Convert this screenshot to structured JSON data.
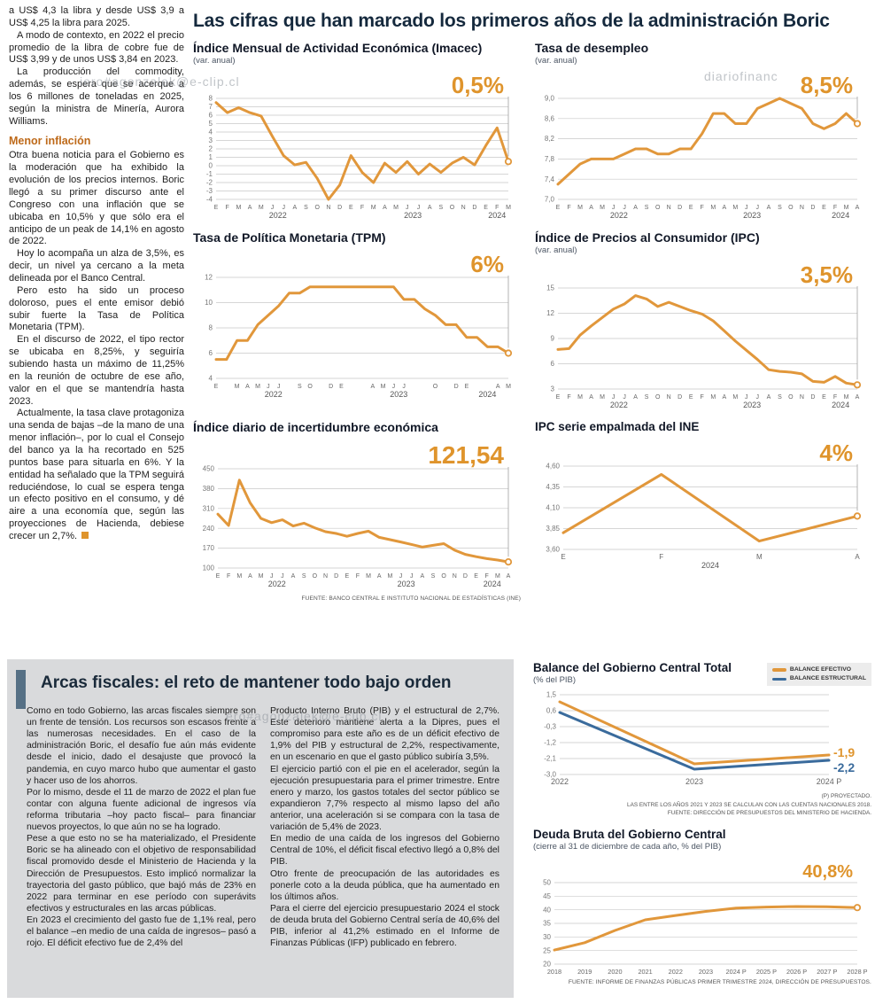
{
  "page": {
    "headline": "Las cifras que han marcado los primeros años de la administración Boric"
  },
  "watermarks": [
    "iero#agonzalek@e-clip.cl",
    "diariofinanc",
    "ero#agonzalek@e-clip.cl"
  ],
  "left_article": {
    "paragraphs_top": [
      "a US$ 4,3 la libra y desde US$ 3,9 a US$ 4,25 la libra para 2025.",
      "A modo de contexto, en 2022 el precio promedio de la libra de cobre fue de US$ 3,99 y de unos US$ 3,84 en 2023.",
      "La producción del commodity, además, se espera que se acerque a los 6 millones de toneladas en 2025, según la ministra de Minería, Aurora Williams."
    ],
    "subhead": "Menor inflación",
    "paragraphs_bottom": [
      "Otra buena noticia para el Gobierno es la moderación que ha exhibido la evolución de los precios internos. Boric llegó a su primer discurso ante el Congreso con una inflación que se ubicaba en 10,5% y que sólo era el anticipo de un peak de 14,1% en agosto de 2022.",
      "Hoy lo acompaña un alza de 3,5%, es decir, un nivel ya cercano a la meta delineada por el Banco Central.",
      "Pero esto ha sido un proceso doloroso, pues el ente emisor debió subir fuerte la Tasa de Política Monetaria (TPM).",
      "En el discurso de 2022, el tipo rector se ubicaba en 8,25%, y seguiría subiendo hasta un máximo de 11,25% en la reunión de octubre de ese año, valor en el que se mantendría hasta 2023.",
      "Actualmente, la tasa clave protagoniza una senda de bajas –de la mano de una menor inflación–, por lo cual el Consejo del banco ya la ha recortado en 525 puntos base para situarla en 6%. Y la entidad ha señalado que la TPM seguirá reduciéndose, lo cual se espera tenga un efecto positivo en el consumo, y dé aire a una economía que, según las proyecciones de Hacienda, debiese crecer un 2,7%."
    ]
  },
  "fiscal": {
    "headline": "Arcas fiscales: el reto de mantener todo bajo orden",
    "col1": [
      "Como en todo Gobierno, las arcas fiscales siempre son un frente de tensión. Los recursos son escasos frente a las numerosas necesidades. En el caso de la administración Boric, el desafío fue aún más evidente desde el inicio, dado el desajuste que provocó la pandemia, en cuyo marco hubo que aumentar el gasto y hacer uso de los ahorros.",
      "Por lo mismo, desde el 11 de marzo de 2022 el plan fue contar con alguna fuente adicional de ingresos vía reforma tributaria –hoy pacto fiscal– para financiar nuevos proyectos, lo que aún no se ha logrado.",
      "Pese a que esto no se ha materializado, el Presidente Boric se ha alineado con el objetivo de responsabilidad fiscal promovido desde el Ministerio de Hacienda y la Dirección de Presupuestos. Esto implicó normalizar la trayectoria del gasto público, que bajó más de 23% en 2022 para terminar en ese período con superávits efectivos y estructurales en las arcas públicas.",
      "En 2023 el crecimiento del gasto fue de 1,1% real, pero el balance –en medio de una caída de ingresos– pasó a rojo. El déficit efectivo fue de 2,4% del"
    ],
    "col2": [
      "Producto Interno Bruto (PIB) y el estructural de 2,7%. Este deterioro mantiene alerta a la Dipres, pues el compromiso para este año es de un déficit efectivo de 1,9% del PIB y estructural de 2,2%, respectivamente, en un escenario en que el gasto público subiría 3,5%.",
      "El ejercicio partió con el pie en el acelerador, según la ejecución presupuestaria para el primer trimestre. Entre enero y marzo, los gastos totales del sector público se expandieron 7,7% respecto al mismo lapso del año anterior, una aceleración si se compara con la tasa de variación de 5,4% de 2023.",
      "En medio de una caída de los ingresos del Gobierno Central de 10%, el déficit fiscal efectivo llegó a 0,8% del PIB.",
      "Otro frente de preocupación de las autoridades es ponerle coto a la deuda pública, que ha aumentado en los últimos años.",
      "Para el cierre del ejercicio presupuestario 2024 el stock de deuda bruta del Gobierno Central sería de 40,6% del PIB, inferior al 41,2% estimado en el Informe de Finanzas Públicas (IFP) publicado en febrero."
    ]
  },
  "colors": {
    "accent_orange": "#E1973B",
    "value_orange": "#DF942C",
    "accent_blue": "#3A6B9C",
    "headline_navy": "#15293D",
    "subhead_orange": "#BE6A1A",
    "fiscal_bg": "#D9DADC",
    "fiscal_bar": "#567085"
  },
  "chart_data": [
    {
      "id": "imacec",
      "type": "line",
      "title": "Índice Mensual de Actividad Económica (Imacec)",
      "subtitle": "(var. anual)",
      "big_value": "0,5%",
      "value_color": "#DF942C",
      "ylim": [
        -4,
        8
      ],
      "yticks": [
        {
          "v": 8,
          "l": "8"
        },
        {
          "v": 7,
          "l": "7"
        },
        {
          "v": 6,
          "l": "6"
        },
        {
          "v": 5,
          "l": "5"
        },
        {
          "v": 4,
          "l": "4"
        },
        {
          "v": 3,
          "l": "3"
        },
        {
          "v": 2,
          "l": "2"
        },
        {
          "v": 1,
          "l": "1"
        },
        {
          "v": 0,
          "l": "0"
        },
        {
          "v": -1,
          "l": "-1"
        },
        {
          "v": -2,
          "l": "-2"
        },
        {
          "v": -3,
          "l": "-3"
        },
        {
          "v": -4,
          "l": "-4"
        }
      ],
      "xlabels": [
        "E",
        "F",
        "M",
        "A",
        "M",
        "J",
        "J",
        "A",
        "S",
        "O",
        "N",
        "D",
        "E",
        "F",
        "M",
        "A",
        "M",
        "J",
        "J",
        "A",
        "S",
        "O",
        "N",
        "D",
        "E",
        "F",
        "M"
      ],
      "yearticks": [
        {
          "i": 5.5,
          "l": "2022"
        },
        {
          "i": 17.5,
          "l": "2023"
        },
        {
          "i": 25,
          "l": "2024"
        }
      ],
      "series": [
        {
          "color": "#E1973B",
          "endpoint": true,
          "values": [
            7.5,
            6.3,
            6.9,
            6.3,
            5.9,
            3.5,
            1.2,
            0.1,
            0.4,
            -1.5,
            -4.0,
            -2.3,
            1.2,
            -0.8,
            -2.0,
            0.3,
            -0.8,
            0.5,
            -1.0,
            0.2,
            -0.8,
            0.3,
            1.0,
            0.1,
            2.4,
            4.5,
            0.5
          ]
        }
      ]
    },
    {
      "id": "desempleo",
      "type": "line",
      "title": "Tasa de desempleo",
      "subtitle": "(var. anual)",
      "big_value": "8,5%",
      "value_color": "#DF942C",
      "ylim": [
        7.0,
        9.0
      ],
      "yticks": [
        {
          "v": 9.0,
          "l": "9,0"
        },
        {
          "v": 8.6,
          "l": "8,6"
        },
        {
          "v": 8.2,
          "l": "8,2"
        },
        {
          "v": 7.8,
          "l": "7,8"
        },
        {
          "v": 7.4,
          "l": "7,4"
        },
        {
          "v": 7.0,
          "l": "7,0"
        }
      ],
      "xlabels": [
        "E",
        "F",
        "M",
        "A",
        "M",
        "J",
        "J",
        "A",
        "S",
        "O",
        "N",
        "D",
        "E",
        "F",
        "M",
        "A",
        "M",
        "J",
        "J",
        "A",
        "S",
        "O",
        "N",
        "D",
        "E",
        "F",
        "M",
        "A"
      ],
      "yearticks": [
        {
          "i": 5.5,
          "l": "2022"
        },
        {
          "i": 17.5,
          "l": "2023"
        },
        {
          "i": 25.5,
          "l": "2024"
        }
      ],
      "series": [
        {
          "color": "#E1973B",
          "endpoint": true,
          "values": [
            7.3,
            7.5,
            7.7,
            7.8,
            7.8,
            7.8,
            7.9,
            8.0,
            8.0,
            7.9,
            7.9,
            8.0,
            8.0,
            8.3,
            8.7,
            8.7,
            8.5,
            8.5,
            8.8,
            8.9,
            9.0,
            8.9,
            8.8,
            8.5,
            8.4,
            8.5,
            8.7,
            8.5
          ]
        }
      ]
    },
    {
      "id": "tpm",
      "type": "line",
      "title": "Tasa de Política Monetaria (TPM)",
      "subtitle": "",
      "big_value": "6%",
      "value_color": "#DF942C",
      "ylim": [
        4,
        12
      ],
      "yticks": [
        {
          "v": 12,
          "l": "12"
        },
        {
          "v": 10,
          "l": "10"
        },
        {
          "v": 8,
          "l": "8"
        },
        {
          "v": 6,
          "l": "6"
        },
        {
          "v": 4,
          "l": "4"
        }
      ],
      "xticks": [
        {
          "i": 0,
          "l": "E"
        },
        {
          "i": 2,
          "l": "M"
        },
        {
          "i": 3,
          "l": "A"
        },
        {
          "i": 4,
          "l": "M"
        },
        {
          "i": 5,
          "l": "J"
        },
        {
          "i": 6,
          "l": "J"
        },
        {
          "i": 8,
          "l": "S"
        },
        {
          "i": 9,
          "l": "O"
        },
        {
          "i": 11,
          "l": "D"
        },
        {
          "i": 12,
          "l": "E"
        },
        {
          "i": 15,
          "l": "A"
        },
        {
          "i": 16,
          "l": "M"
        },
        {
          "i": 17,
          "l": "J"
        },
        {
          "i": 18,
          "l": "J"
        },
        {
          "i": 21,
          "l": "O"
        },
        {
          "i": 23,
          "l": "D"
        },
        {
          "i": 24,
          "l": "E"
        },
        {
          "i": 27,
          "l": "A"
        },
        {
          "i": 28,
          "l": "M"
        }
      ],
      "yearticks": [
        {
          "i": 5.5,
          "l": "2022"
        },
        {
          "i": 17.5,
          "l": "2023"
        },
        {
          "i": 26,
          "l": "2024"
        }
      ],
      "series": [
        {
          "color": "#E1973B",
          "endpoint": true,
          "values": [
            5.5,
            5.5,
            7.0,
            7.0,
            8.25,
            9.0,
            9.75,
            10.75,
            10.75,
            11.25,
            11.25,
            11.25,
            11.25,
            11.25,
            11.25,
            11.25,
            11.25,
            11.25,
            10.25,
            10.25,
            9.5,
            9.0,
            8.25,
            8.25,
            7.25,
            7.25,
            6.5,
            6.5,
            6.0
          ]
        }
      ]
    },
    {
      "id": "ipc",
      "type": "line",
      "title": "Índice de Precios al Consumidor (IPC)",
      "subtitle": "(var. anual)",
      "big_value": "3,5%",
      "value_color": "#DF942C",
      "ylim": [
        3,
        15
      ],
      "yticks": [
        {
          "v": 15,
          "l": "15"
        },
        {
          "v": 12,
          "l": "12"
        },
        {
          "v": 9,
          "l": "9"
        },
        {
          "v": 6,
          "l": "6"
        },
        {
          "v": 3,
          "l": "3"
        }
      ],
      "xlabels": [
        "E",
        "F",
        "M",
        "A",
        "M",
        "J",
        "J",
        "A",
        "S",
        "O",
        "N",
        "D",
        "E",
        "F",
        "M",
        "A",
        "M",
        "J",
        "J",
        "A",
        "S",
        "O",
        "N",
        "D",
        "E",
        "F",
        "M",
        "A"
      ],
      "yearticks": [
        {
          "i": 5.5,
          "l": "2022"
        },
        {
          "i": 17.5,
          "l": "2023"
        },
        {
          "i": 25.5,
          "l": "2024"
        }
      ],
      "series": [
        {
          "color": "#E1973B",
          "endpoint": true,
          "values": [
            7.7,
            7.8,
            9.4,
            10.5,
            11.5,
            12.5,
            13.1,
            14.1,
            13.7,
            12.8,
            13.3,
            12.8,
            12.3,
            11.9,
            11.1,
            9.9,
            8.7,
            7.6,
            6.5,
            5.3,
            5.1,
            5.0,
            4.8,
            3.9,
            3.8,
            4.5,
            3.7,
            3.5
          ]
        }
      ]
    },
    {
      "id": "incertidumbre",
      "type": "line",
      "title": "Índice diario de incertidumbre económica",
      "subtitle": "",
      "big_value": "121,54",
      "value_color": "#DF942C",
      "source": "FUENTE: BANCO CENTRAL E INSTITUTO NACIONAL DE ESTADÍSTICAS (INE)",
      "ylim": [
        100,
        450
      ],
      "yticks": [
        {
          "v": 450,
          "l": "450"
        },
        {
          "v": 380,
          "l": "380"
        },
        {
          "v": 310,
          "l": "310"
        },
        {
          "v": 240,
          "l": "240"
        },
        {
          "v": 170,
          "l": "170"
        },
        {
          "v": 100,
          "l": "100"
        }
      ],
      "xlabels": [
        "E",
        "F",
        "M",
        "A",
        "M",
        "J",
        "J",
        "A",
        "S",
        "O",
        "N",
        "D",
        "E",
        "F",
        "M",
        "A",
        "M",
        "J",
        "J",
        "A",
        "S",
        "O",
        "N",
        "D",
        "E",
        "F",
        "M",
        "A"
      ],
      "yearticks": [
        {
          "i": 5.5,
          "l": "2022"
        },
        {
          "i": 17.5,
          "l": "2023"
        },
        {
          "i": 25.5,
          "l": "2024"
        }
      ],
      "series": [
        {
          "color": "#E1973B",
          "endpoint": true,
          "values": [
            290,
            250,
            410,
            330,
            275,
            260,
            270,
            248,
            258,
            242,
            228,
            222,
            212,
            222,
            230,
            208,
            200,
            192,
            183,
            174,
            180,
            186,
            163,
            148,
            140,
            133,
            128,
            121.54
          ]
        }
      ]
    },
    {
      "id": "ipc_empalmada",
      "type": "line",
      "title": "IPC serie empalmada del INE",
      "subtitle": "",
      "big_value": "4%",
      "value_color": "#DF942C",
      "ylim": [
        3.6,
        4.6
      ],
      "yticks": [
        {
          "v": 4.6,
          "l": "4,60"
        },
        {
          "v": 4.35,
          "l": "4,35"
        },
        {
          "v": 4.1,
          "l": "4,10"
        },
        {
          "v": 3.85,
          "l": "3,85"
        },
        {
          "v": 3.6,
          "l": "3,60"
        }
      ],
      "xlabels": [
        "E",
        "F",
        "M",
        "A"
      ],
      "yearticks": [
        {
          "i": 1.5,
          "l": "2024"
        }
      ],
      "series": [
        {
          "color": "#E1973B",
          "endpoint": true,
          "values": [
            3.8,
            4.5,
            3.7,
            4.0
          ]
        }
      ]
    },
    {
      "id": "balance",
      "type": "line",
      "title": "Balance del Gobierno Central Total",
      "subtitle": "(% del PIB)",
      "notes": [
        "(P) PROYECTADO.",
        "LAS ENTRE LOS AÑOS 2021 Y 2023 SE CALCULAN CON LAS CUENTAS NACIONALES 2018.",
        "FUENTE: DIRECCIÓN DE PRESUPUESTOS DEL MINISTERIO DE HACIENDA."
      ],
      "ylim": [
        -3.0,
        1.5
      ],
      "yticks": [
        {
          "v": 1.5,
          "l": "1,5"
        },
        {
          "v": 0.6,
          "l": "0,6"
        },
        {
          "v": -0.3,
          "l": "-0,3"
        },
        {
          "v": -1.2,
          "l": "-1,2"
        },
        {
          "v": -2.1,
          "l": "-2,1"
        },
        {
          "v": -3.0,
          "l": "-3,0"
        }
      ],
      "xlabels": [
        "2022",
        "2023",
        "2024 P"
      ],
      "side_labels": [
        {
          "text": "-1,9",
          "v": -1.9,
          "dy": -2,
          "color": "#DF942C"
        },
        {
          "text": "-2,2",
          "v": -2.2,
          "dy": 9,
          "color": "#3A6B9C"
        }
      ],
      "series": [
        {
          "name": "BALANCE EFECTIVO",
          "color": "#E1973B",
          "values": [
            1.1,
            -2.4,
            -1.9
          ]
        },
        {
          "name": "BALANCE ESTRUCTURAL",
          "color": "#3A6B9C",
          "values": [
            0.5,
            -2.7,
            -2.2
          ]
        }
      ]
    },
    {
      "id": "deuda",
      "type": "line",
      "title": "Deuda Bruta del Gobierno Central",
      "subtitle": "(cierre al 31 de diciembre de cada año, % del PIB)",
      "big_value": "40,8%",
      "value_color": "#DF942C",
      "source": "FUENTE: INFORME DE FINANZAS PÚBLICAS PRIMER TRIMESTRE 2024, DIRECCIÓN DE PRESUPUESTOS.",
      "ylim": [
        20,
        50
      ],
      "yticks": [
        {
          "v": 50,
          "l": "50"
        },
        {
          "v": 45,
          "l": "45"
        },
        {
          "v": 40,
          "l": "40"
        },
        {
          "v": 35,
          "l": "35"
        },
        {
          "v": 30,
          "l": "30"
        },
        {
          "v": 25,
          "l": "25"
        },
        {
          "v": 20,
          "l": "20"
        }
      ],
      "xlabels": [
        "2018",
        "2019",
        "2020",
        "2021",
        "2022",
        "2023",
        "2024 P",
        "2025 P",
        "2026 P",
        "2027 P",
        "2028 P"
      ],
      "series": [
        {
          "color": "#E1973B",
          "endpoint": true,
          "values": [
            25.2,
            27.9,
            32.4,
            36.3,
            37.9,
            39.4,
            40.6,
            41.0,
            41.2,
            41.1,
            40.8
          ]
        }
      ]
    }
  ]
}
